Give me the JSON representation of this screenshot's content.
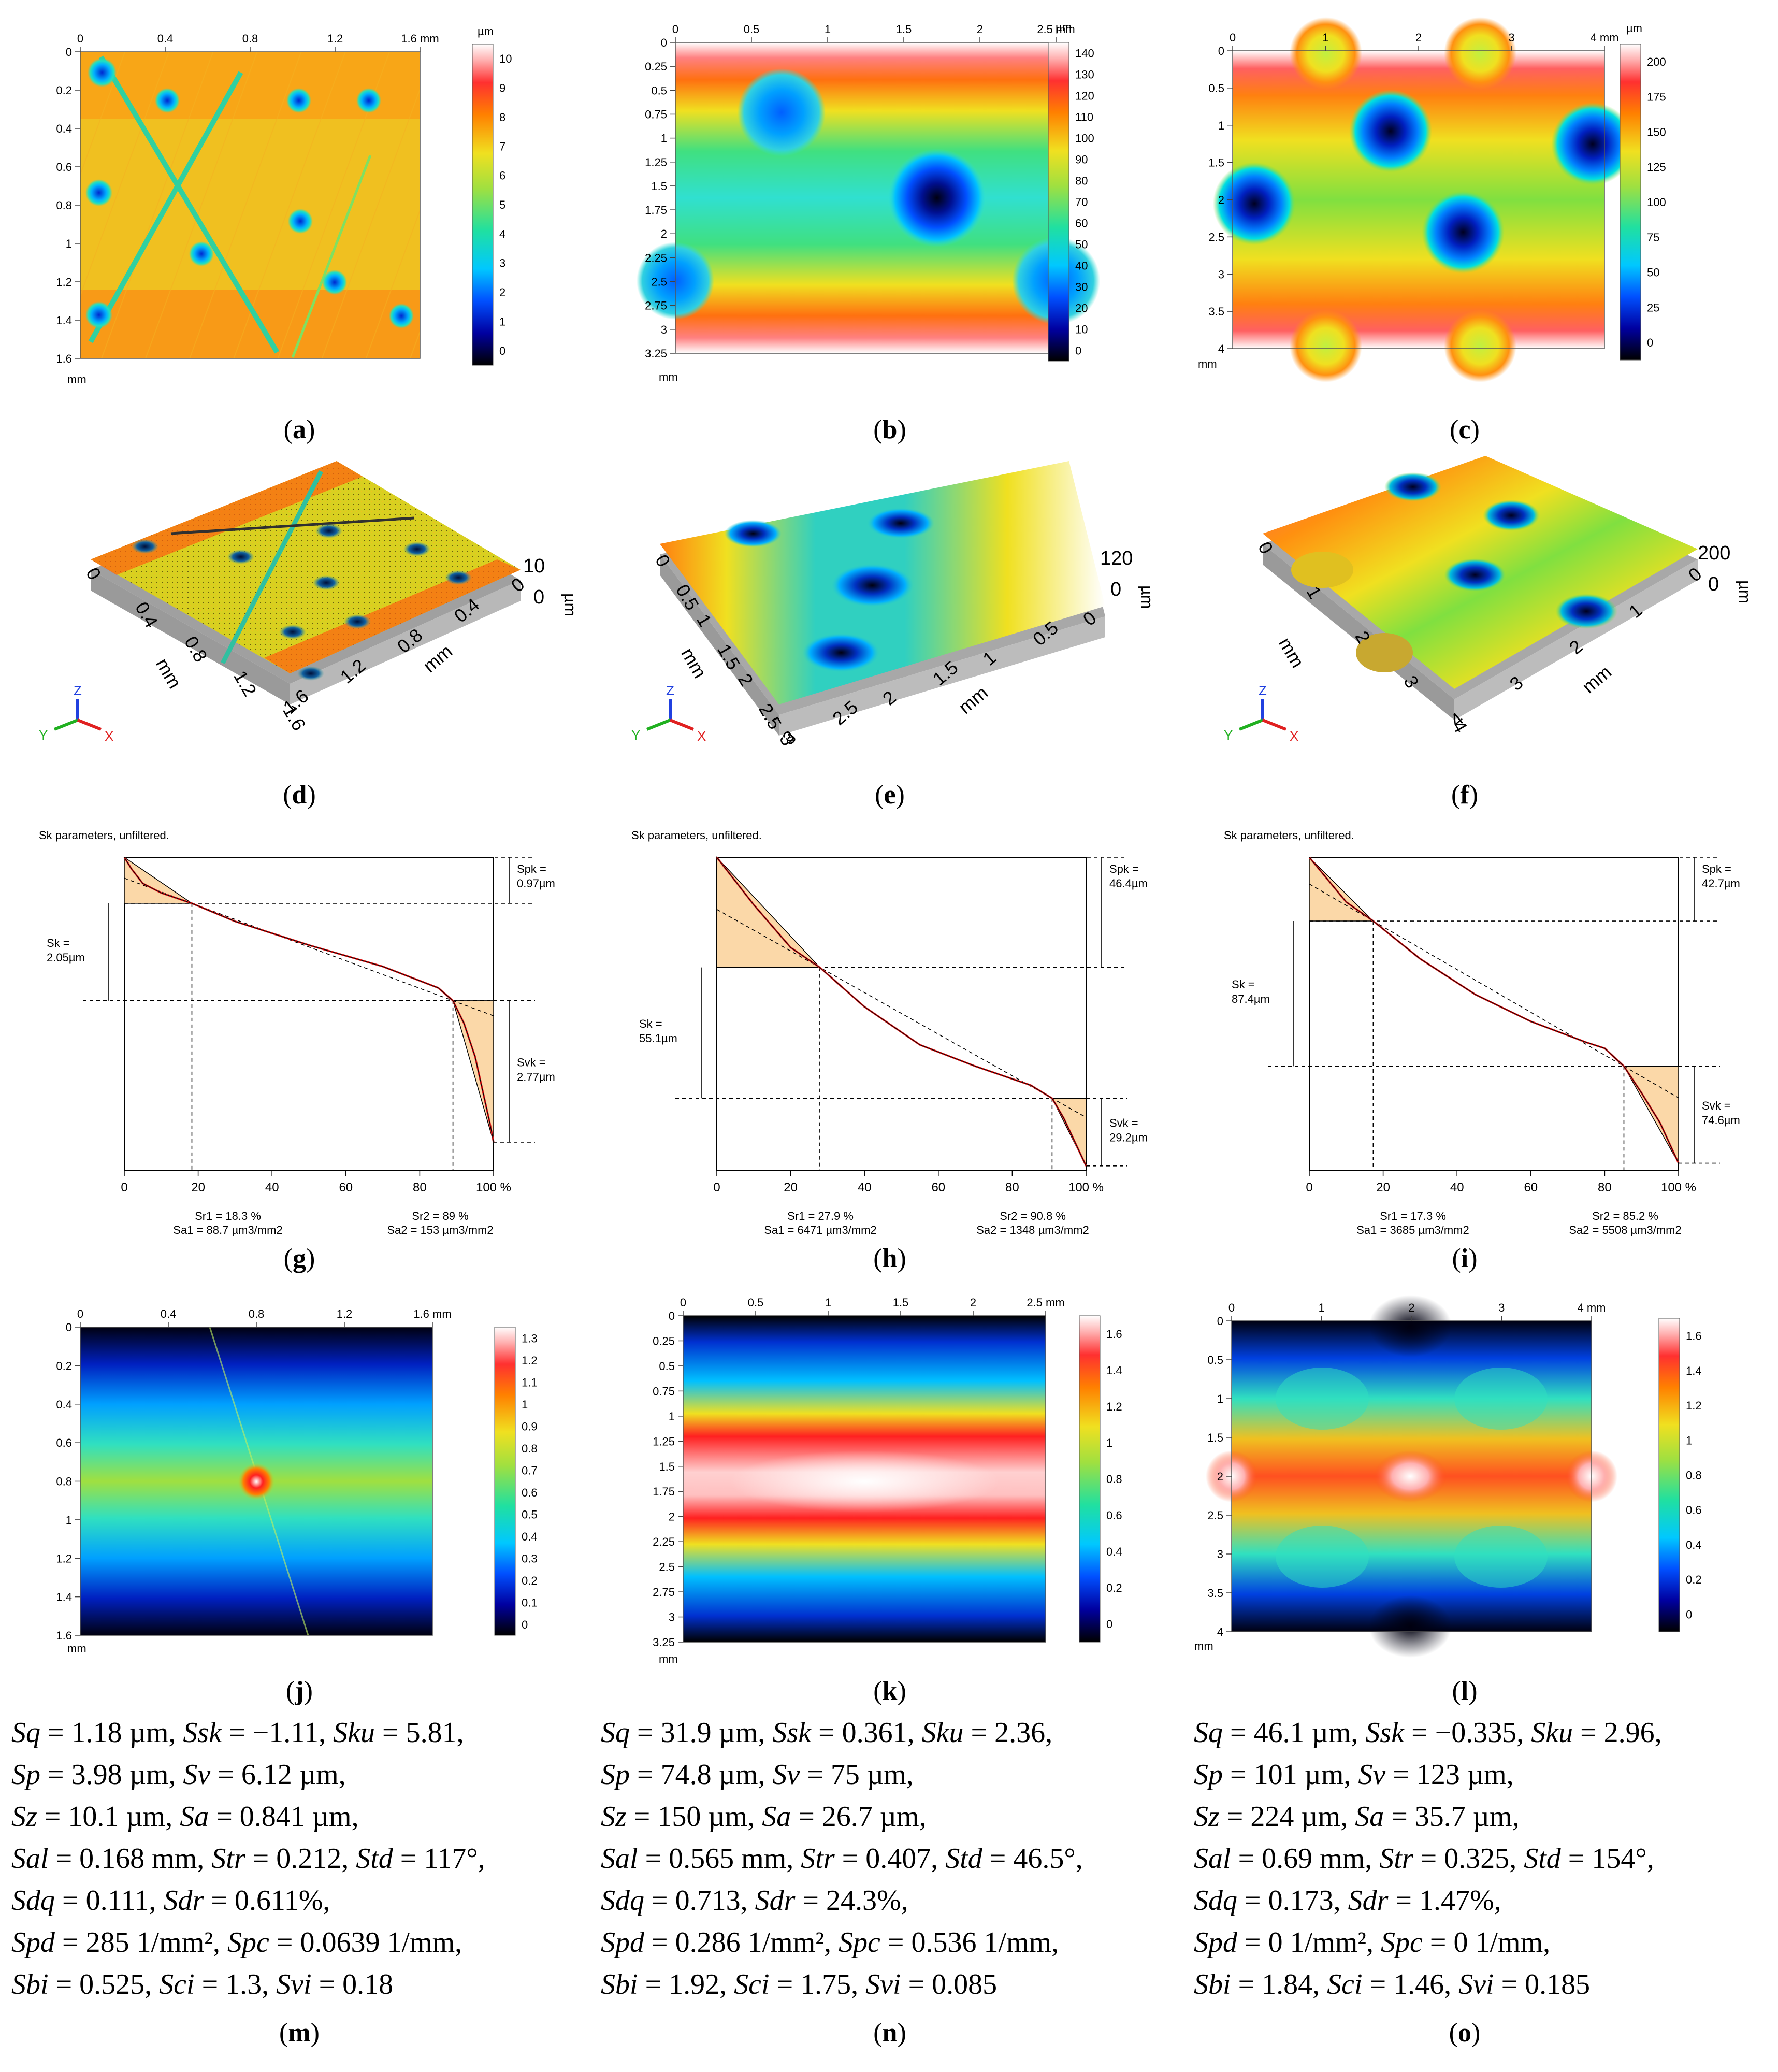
{
  "maps_top": [
    {
      "id": "a",
      "caption": "a",
      "x_ticks": [
        "0",
        "0.4",
        "0.8",
        "1.2",
        "1.6 mm"
      ],
      "y_ticks": [
        "0",
        "0.2",
        "0.4",
        "0.6",
        "0.8",
        "1",
        "1.2",
        "1.4",
        "1.6"
      ],
      "axis_unit": "mm",
      "bar_unit": "µm",
      "bar_ticks": [
        "10",
        "9",
        "8",
        "7",
        "6",
        "5",
        "4",
        "3",
        "2",
        "1",
        "0"
      ],
      "bar_range": [
        0,
        10
      ]
    },
    {
      "id": "b",
      "caption": "b",
      "x_ticks": [
        "0",
        "0.5",
        "1",
        "1.5",
        "2",
        "2.5 mm"
      ],
      "y_ticks": [
        "0.25",
        "0.5",
        "0.75",
        "1",
        "1.25",
        "1.5",
        "1.75",
        "2",
        "2.25",
        "2.5",
        "2.75",
        "3",
        "3.25"
      ],
      "axis_unit": "mm",
      "bar_unit": "µm",
      "bar_ticks": [
        "140",
        "130",
        "120",
        "110",
        "100",
        "90",
        "80",
        "70",
        "60",
        "50",
        "40",
        "30",
        "20",
        "10",
        "0"
      ],
      "bar_range": [
        0,
        145
      ]
    },
    {
      "id": "c",
      "caption": "c",
      "x_ticks": [
        "0",
        "1",
        "2",
        "3",
        "4 mm"
      ],
      "y_ticks": [
        "0",
        "0.5",
        "1",
        "1.5",
        "2",
        "2.5",
        "3",
        "3.5",
        "4"
      ],
      "axis_unit": "mm",
      "bar_unit": "µm",
      "bar_ticks": [
        "200",
        "175",
        "150",
        "125",
        "100",
        "75",
        "50",
        "25",
        "0"
      ],
      "bar_range": [
        0,
        220
      ]
    }
  ],
  "views_3d": [
    {
      "id": "d",
      "caption": "d",
      "z_label": "10",
      "z_zero": "0",
      "z_unit": "µm",
      "left_ticks": [
        "0",
        "0.4",
        "0.8",
        "1.2",
        "1.6"
      ],
      "right_ticks": [
        "1.6",
        "1.2",
        "0.8",
        "0.4",
        "0"
      ],
      "axis_unit": "mm",
      "axes": [
        "Z",
        "Y",
        "X"
      ]
    },
    {
      "id": "e",
      "caption": "e",
      "z_label": "120",
      "z_zero": "0",
      "z_unit": "µm",
      "left_ticks": [
        "0",
        "0.5",
        "1",
        "1.5",
        "2",
        "2.5",
        "3"
      ],
      "right_ticks": [
        "3",
        "2.5",
        "2",
        "1.5",
        "1",
        "0.5",
        "0"
      ],
      "axis_unit": "mm",
      "axes": [
        "Z",
        "Y",
        "X"
      ]
    },
    {
      "id": "f",
      "caption": "f",
      "z_label": "200",
      "z_zero": "0",
      "z_unit": "µm",
      "left_ticks": [
        "0",
        "1",
        "2",
        "3",
        "4"
      ],
      "right_ticks": [
        "4",
        "3",
        "2",
        "1",
        "0"
      ],
      "axis_unit": "mm",
      "axes": [
        "Z",
        "Y",
        "X"
      ]
    }
  ],
  "chart_data": [
    {
      "id": "g",
      "caption": "g",
      "type": "line",
      "title": "Sk parameters, unfiltered.",
      "x": [
        0,
        2,
        5,
        10,
        18.3,
        30,
        50,
        70,
        85,
        89,
        92,
        95,
        97,
        99,
        100
      ],
      "values": [
        0,
        0.25,
        0.55,
        0.75,
        0.97,
        1.35,
        1.85,
        2.3,
        2.75,
        3.02,
        3.5,
        4.2,
        4.9,
        5.6,
        6.0
      ],
      "ylim": [
        0,
        6.6
      ],
      "xlabel": "%",
      "x_ticks": [
        "0",
        "20",
        "40",
        "60",
        "80",
        "100 %"
      ],
      "Spk_label": "Spk =",
      "Spk": "0.97µm",
      "Sk_label": "Sk =",
      "Sk": "2.05µm",
      "Svk_label": "Svk =",
      "Svk": "2.77µm",
      "sr1": "Sr1 = 18.3 %",
      "sa1": "Sa1 = 88.7 µm3/mm2",
      "sr2": "Sr2 = 89 %",
      "sa2": "Sa2 = 153 µm3/mm2",
      "sr1_pct": 18.3,
      "sr2_pct": 89
    },
    {
      "id": "h",
      "caption": "h",
      "type": "line",
      "title": "Sk parameters, unfiltered.",
      "x": [
        0,
        5,
        10,
        20,
        27.9,
        40,
        55,
        70,
        85,
        90.8,
        94,
        97,
        100
      ],
      "values": [
        0,
        10,
        20,
        38,
        46.4,
        63,
        79,
        88,
        96,
        101.5,
        110,
        120,
        130
      ],
      "ylim": [
        0,
        132
      ],
      "xlabel": "%",
      "x_ticks": [
        "0",
        "20",
        "40",
        "60",
        "80",
        "100 %"
      ],
      "Spk_label": "Spk =",
      "Spk": "46.4µm",
      "Sk_label": "Sk =",
      "Sk": "55.1µm",
      "Svk_label": "Svk =",
      "Svk": "29.2µm",
      "sr1": "Sr1 = 27.9 %",
      "sa1": "Sa1 = 6471 µm3/mm2",
      "sr2": "Sr2 = 90.8 %",
      "sa2": "Sa2 = 1348 µm3/mm2",
      "sr1_pct": 27.9,
      "sr2_pct": 90.8
    },
    {
      "id": "i",
      "caption": "i",
      "type": "line",
      "title": "Sk parameters, unfiltered.",
      "x": [
        0,
        5,
        10,
        17.3,
        30,
        45,
        60,
        75,
        80,
        85.2,
        90,
        95,
        100
      ],
      "values": [
        0,
        15,
        30,
        42.7,
        68,
        92,
        110,
        124,
        128,
        140,
        158,
        178,
        205
      ],
      "ylim": [
        0,
        210
      ],
      "xlabel": "%",
      "x_ticks": [
        "0",
        "20",
        "40",
        "60",
        "80",
        "100 %"
      ],
      "Spk_label": "Spk =",
      "Spk": "42.7µm",
      "Sk_label": "Sk =",
      "Sk": "87.4µm",
      "Svk_label": "Svk =",
      "Svk": "74.6µm",
      "sr1": "Sr1 = 17.3 %",
      "sa1": "Sa1 = 3685 µm3/mm2",
      "sr2": "Sr2 = 85.2 %",
      "sa2": "Sa2 = 5508 µm3/mm2",
      "sr1_pct": 17.3,
      "sr2_pct": 85.2
    }
  ],
  "maps_bottom": [
    {
      "id": "j",
      "caption": "j",
      "x_ticks": [
        "0",
        "0.4",
        "0.8",
        "1.2",
        "1.6 mm"
      ],
      "y_ticks": [
        "0",
        "0.2",
        "0.4",
        "0.6",
        "0.8",
        "1",
        "1.2",
        "1.4",
        "1.6"
      ],
      "axis_unit": "mm",
      "bar_ticks": [
        "1.3",
        "1.2",
        "1.1",
        "1",
        "0.9",
        "0.8",
        "0.7",
        "0.6",
        "0.5",
        "0.4",
        "0.3",
        "0.2",
        "0.1",
        "0"
      ],
      "bar_range": [
        0,
        1.35
      ]
    },
    {
      "id": "k",
      "caption": "k",
      "x_ticks": [
        "0",
        "0.5",
        "1",
        "1.5",
        "2",
        "2.5 mm"
      ],
      "y_ticks": [
        "0",
        "0.25",
        "0.5",
        "0.75",
        "1",
        "1.25",
        "1.5",
        "1.75",
        "2",
        "2.25",
        "2.5",
        "2.75",
        "3",
        "3.25"
      ],
      "axis_unit": "mm",
      "bar_ticks": [
        "1.6",
        "1.4",
        "1.2",
        "1",
        "0.8",
        "0.6",
        "0.4",
        "0.2",
        "0"
      ],
      "bar_range": [
        0,
        1.75
      ]
    },
    {
      "id": "l",
      "caption": "l",
      "x_ticks": [
        "0",
        "1",
        "2",
        "3",
        "4 mm"
      ],
      "y_ticks": [
        "0",
        "0.5",
        "1",
        "1.5",
        "2",
        "2.5",
        "3",
        "3.5",
        "4"
      ],
      "axis_unit": "mm",
      "bar_ticks": [
        "1.6",
        "1.4",
        "1.2",
        "1",
        "0.8",
        "0.6",
        "0.4",
        "0.2",
        "0"
      ],
      "bar_range": [
        0,
        1.7
      ]
    }
  ],
  "params": [
    {
      "id": "m",
      "caption": "m",
      "lines": [
        [
          [
            "Sq",
            " = 1.18 µm, "
          ],
          [
            "Ssk",
            " = −1.11, "
          ],
          [
            "Sku",
            " = 5.81,"
          ]
        ],
        [
          [
            "Sp",
            " = 3.98 µm, "
          ],
          [
            "Sv",
            " = 6.12 µm,"
          ]
        ],
        [
          [
            "Sz",
            " = 10.1 µm, "
          ],
          [
            "Sa",
            " = 0.841 µm,"
          ]
        ],
        [
          [
            "Sal",
            " = 0.168 mm, "
          ],
          [
            "Str",
            " = 0.212, "
          ],
          [
            "Std",
            " = 117°,"
          ]
        ],
        [
          [
            "Sdq",
            " = 0.111, "
          ],
          [
            "Sdr",
            " = 0.611%,"
          ]
        ],
        [
          [
            "Spd",
            " = 285 1/mm², "
          ],
          [
            "Spc",
            " = 0.0639 1/mm,"
          ]
        ],
        [
          [
            "Sbi",
            " = 0.525, "
          ],
          [
            "Sci",
            " = 1.3, "
          ],
          [
            "Svi",
            " = 0.18"
          ]
        ]
      ]
    },
    {
      "id": "n",
      "caption": "n",
      "lines": [
        [
          [
            "Sq",
            " = 31.9 µm, "
          ],
          [
            "Ssk",
            " = 0.361, "
          ],
          [
            "Sku",
            " = 2.36,"
          ]
        ],
        [
          [
            "Sp",
            " = 74.8 µm, "
          ],
          [
            "Sv",
            " = 75 µm,"
          ]
        ],
        [
          [
            "Sz",
            " = 150 µm, "
          ],
          [
            "Sa",
            " = 26.7 µm,"
          ]
        ],
        [
          [
            "Sal",
            " = 0.565 mm, "
          ],
          [
            "Str",
            " = 0.407, "
          ],
          [
            "Std",
            " = 46.5°,"
          ]
        ],
        [
          [
            "Sdq",
            " = 0.713, "
          ],
          [
            "Sdr",
            " = 24.3%,"
          ]
        ],
        [
          [
            "Spd",
            " = 0.286 1/mm², "
          ],
          [
            "Spc",
            " = 0.536 1/mm,"
          ]
        ],
        [
          [
            "Sbi",
            " = 1.92, "
          ],
          [
            "Sci",
            " = 1.75, "
          ],
          [
            "Svi",
            " = 0.085"
          ]
        ]
      ]
    },
    {
      "id": "o",
      "caption": "o",
      "lines": [
        [
          [
            "Sq",
            " = 46.1 µm, "
          ],
          [
            "Ssk",
            " = −0.335, "
          ],
          [
            "Sku",
            " = 2.96,"
          ]
        ],
        [
          [
            "Sp",
            " = 101 µm, "
          ],
          [
            "Sv",
            " = 123 µm,"
          ]
        ],
        [
          [
            "Sz",
            " = 224 µm, "
          ],
          [
            "Sa",
            " = 35.7 µm,"
          ]
        ],
        [
          [
            "Sal",
            " = 0.69 mm, "
          ],
          [
            "Str",
            " = 0.325, "
          ],
          [
            "Std",
            " = 154°,"
          ]
        ],
        [
          [
            "Sdq",
            " = 0.173, "
          ],
          [
            "Sdr",
            " = 1.47%,"
          ]
        ],
        [
          [
            "Spd",
            " = 0 1/mm², "
          ],
          [
            "Spc",
            " = 0 1/mm,"
          ]
        ],
        [
          [
            "Sbi",
            " = 1.84, "
          ],
          [
            "Sci",
            " = 1.46, "
          ],
          [
            "Svi",
            " = 0.185"
          ]
        ]
      ]
    }
  ]
}
